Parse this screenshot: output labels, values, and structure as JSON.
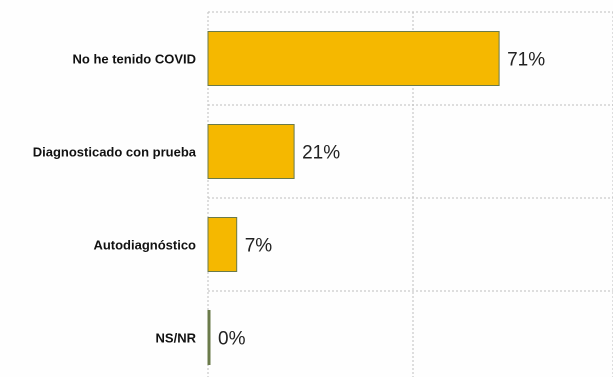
{
  "chart_data": {
    "type": "bar",
    "orientation": "horizontal",
    "categories": [
      "No he tenido COVID",
      "Diagnosticado con prueba",
      "Autodiagnóstico",
      "NS/NR"
    ],
    "values": [
      71,
      21,
      7,
      0
    ],
    "value_labels": [
      "71%",
      "21%",
      "7%",
      "0%"
    ],
    "xlim": [
      0,
      100
    ],
    "grid": true,
    "legend": "none",
    "colors": {
      "bar_fill": "#F5B800",
      "bar_stroke": "#6A7A4A",
      "grid": "#BFBFBF"
    }
  }
}
